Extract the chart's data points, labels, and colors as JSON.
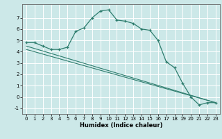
{
  "title": "",
  "xlabel": "Humidex (Indice chaleur)",
  "bg_color": "#cce8e8",
  "grid_color": "#ffffff",
  "line_color": "#2e7d6e",
  "xlim": [
    -0.5,
    23.5
  ],
  "ylim": [
    -1.5,
    8.2
  ],
  "x_ticks": [
    0,
    1,
    2,
    3,
    4,
    5,
    6,
    7,
    8,
    9,
    10,
    11,
    12,
    13,
    14,
    15,
    16,
    17,
    18,
    19,
    20,
    21,
    22,
    23
  ],
  "y_ticks": [
    -1,
    0,
    1,
    2,
    3,
    4,
    5,
    6,
    7
  ],
  "curve1_x": [
    0,
    1,
    2,
    3,
    4,
    5,
    6,
    7,
    8,
    9,
    10,
    11,
    12,
    13,
    14,
    15,
    16,
    17,
    18,
    19,
    20,
    21,
    22,
    23
  ],
  "curve1_y": [
    4.8,
    4.8,
    4.5,
    4.2,
    4.2,
    4.4,
    5.8,
    6.1,
    7.0,
    7.6,
    7.7,
    6.8,
    6.7,
    6.5,
    6.0,
    5.9,
    5.0,
    3.1,
    2.6,
    1.2,
    0.0,
    -0.7,
    -0.5,
    -0.5
  ],
  "curve2_x": [
    0,
    23
  ],
  "curve2_y": [
    4.5,
    -0.5
  ],
  "curve3_x": [
    0,
    23
  ],
  "curve3_y": [
    4.2,
    -0.5
  ],
  "xlabel_fontsize": 6.0,
  "tick_fontsize": 5.0
}
